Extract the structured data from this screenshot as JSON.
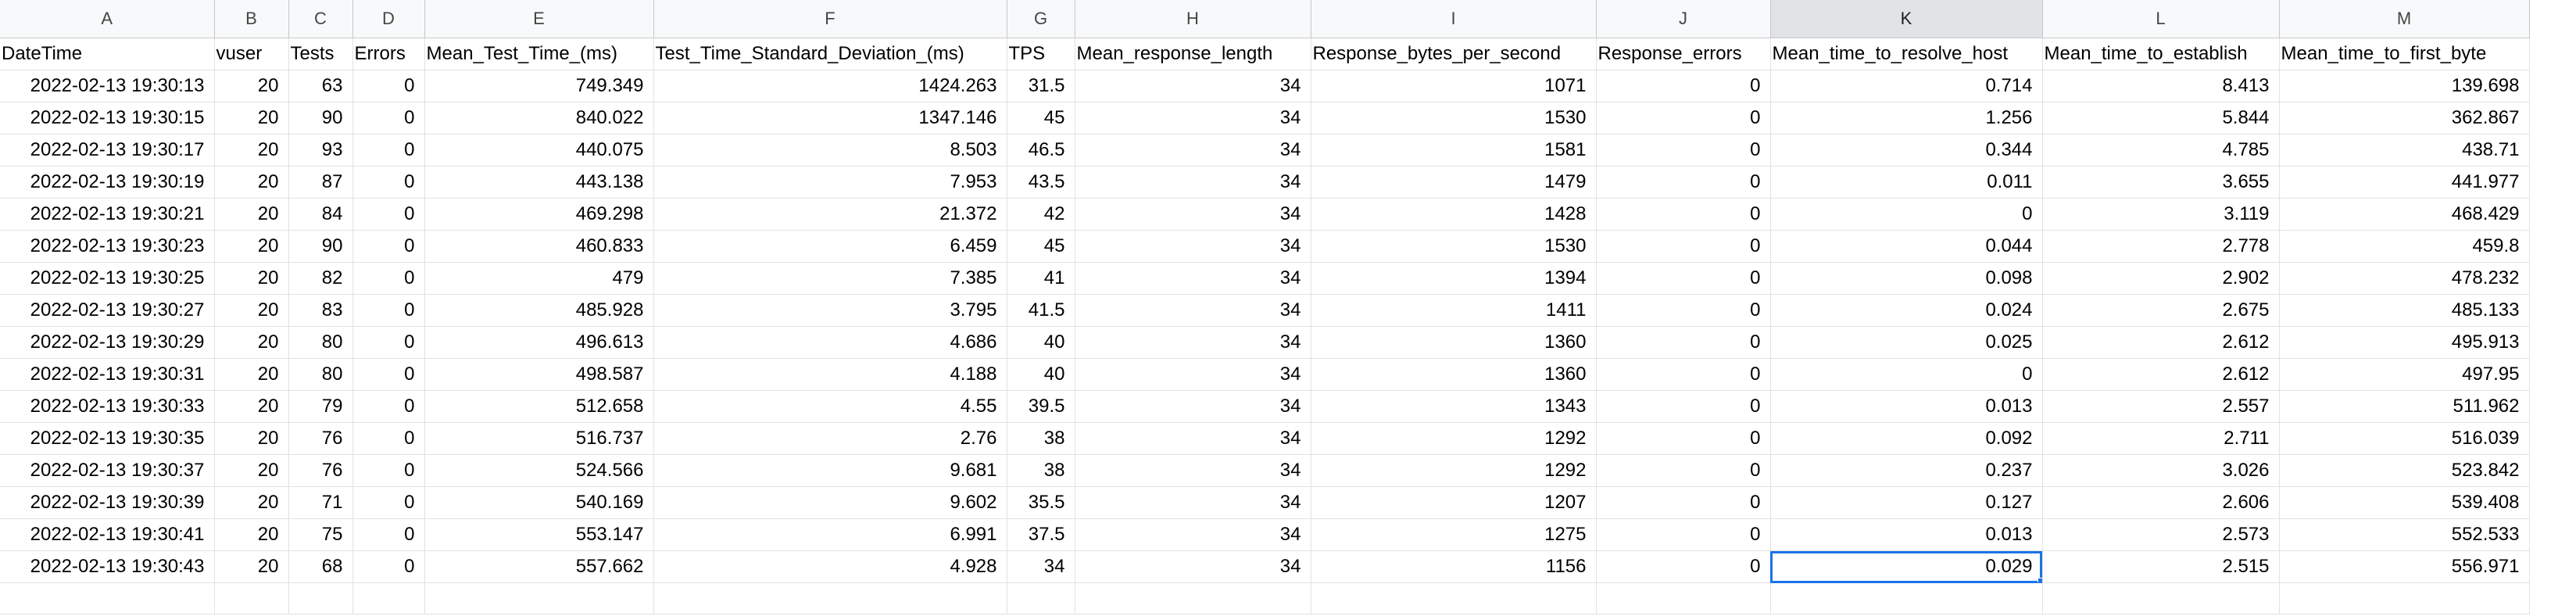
{
  "columns": [
    "A",
    "B",
    "C",
    "D",
    "E",
    "F",
    "G",
    "H",
    "I",
    "J",
    "K",
    "L",
    "M"
  ],
  "active_column": "K",
  "headers": [
    "DateTime",
    "vuser",
    "Tests",
    "Errors",
    "Mean_Test_Time_(ms)",
    "Test_Time_Standard_Deviation_(ms)",
    "TPS",
    "Mean_response_length",
    "Response_bytes_per_second",
    "Response_errors",
    "Mean_time_to_resolve_host",
    "Mean_time_to_establish",
    "Mean_time_to_first_byte"
  ],
  "rows": [
    [
      "2022-02-13 19:30:13",
      "20",
      "63",
      "0",
      "749.349",
      "1424.263",
      "31.5",
      "34",
      "1071",
      "0",
      "0.714",
      "8.413",
      "139.698"
    ],
    [
      "2022-02-13 19:30:15",
      "20",
      "90",
      "0",
      "840.022",
      "1347.146",
      "45",
      "34",
      "1530",
      "0",
      "1.256",
      "5.844",
      "362.867"
    ],
    [
      "2022-02-13 19:30:17",
      "20",
      "93",
      "0",
      "440.075",
      "8.503",
      "46.5",
      "34",
      "1581",
      "0",
      "0.344",
      "4.785",
      "438.71"
    ],
    [
      "2022-02-13 19:30:19",
      "20",
      "87",
      "0",
      "443.138",
      "7.953",
      "43.5",
      "34",
      "1479",
      "0",
      "0.011",
      "3.655",
      "441.977"
    ],
    [
      "2022-02-13 19:30:21",
      "20",
      "84",
      "0",
      "469.298",
      "21.372",
      "42",
      "34",
      "1428",
      "0",
      "0",
      "3.119",
      "468.429"
    ],
    [
      "2022-02-13 19:30:23",
      "20",
      "90",
      "0",
      "460.833",
      "6.459",
      "45",
      "34",
      "1530",
      "0",
      "0.044",
      "2.778",
      "459.8"
    ],
    [
      "2022-02-13 19:30:25",
      "20",
      "82",
      "0",
      "479",
      "7.385",
      "41",
      "34",
      "1394",
      "0",
      "0.098",
      "2.902",
      "478.232"
    ],
    [
      "2022-02-13 19:30:27",
      "20",
      "83",
      "0",
      "485.928",
      "3.795",
      "41.5",
      "34",
      "1411",
      "0",
      "0.024",
      "2.675",
      "485.133"
    ],
    [
      "2022-02-13 19:30:29",
      "20",
      "80",
      "0",
      "496.613",
      "4.686",
      "40",
      "34",
      "1360",
      "0",
      "0.025",
      "2.612",
      "495.913"
    ],
    [
      "2022-02-13 19:30:31",
      "20",
      "80",
      "0",
      "498.587",
      "4.188",
      "40",
      "34",
      "1360",
      "0",
      "0",
      "2.612",
      "497.95"
    ],
    [
      "2022-02-13 19:30:33",
      "20",
      "79",
      "0",
      "512.658",
      "4.55",
      "39.5",
      "34",
      "1343",
      "0",
      "0.013",
      "2.557",
      "511.962"
    ],
    [
      "2022-02-13 19:30:35",
      "20",
      "76",
      "0",
      "516.737",
      "2.76",
      "38",
      "34",
      "1292",
      "0",
      "0.092",
      "2.711",
      "516.039"
    ],
    [
      "2022-02-13 19:30:37",
      "20",
      "76",
      "0",
      "524.566",
      "9.681",
      "38",
      "34",
      "1292",
      "0",
      "0.237",
      "3.026",
      "523.842"
    ],
    [
      "2022-02-13 19:30:39",
      "20",
      "71",
      "0",
      "540.169",
      "9.602",
      "35.5",
      "34",
      "1207",
      "0",
      "0.127",
      "2.606",
      "539.408"
    ],
    [
      "2022-02-13 19:30:41",
      "20",
      "75",
      "0",
      "553.147",
      "6.991",
      "37.5",
      "34",
      "1275",
      "0",
      "0.013",
      "2.573",
      "552.533"
    ],
    [
      "2022-02-13 19:30:43",
      "20",
      "68",
      "0",
      "557.662",
      "4.928",
      "34",
      "34",
      "1156",
      "0",
      "0.029",
      "2.515",
      "556.971"
    ]
  ],
  "selected_cell": "K17",
  "colors": {
    "selection": "#1a73e8",
    "grid_line": "#e2e2e2",
    "header_bg": "#f8f9fa",
    "active_header_bg": "#e1e3e6"
  }
}
